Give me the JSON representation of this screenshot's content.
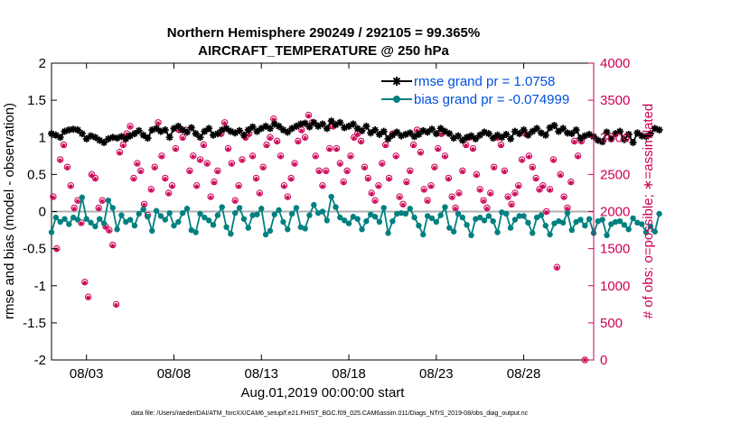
{
  "chart_data": {
    "type": "line",
    "title_line1": "Northern Hemisphere 290249 / 292105 = 99.365%",
    "title_line2": "AIRCRAFT_TEMPERATURE @ 250 hPa",
    "xlabel": "Aug.01,2019 00:00:00 start",
    "ylabel_left": "rmse and bias (model - observation)",
    "ylabel_right": "# of obs: o=possible; ∗=assimilated",
    "xlim": [
      0,
      31
    ],
    "ylim_left": [
      -2,
      2
    ],
    "ylim_right": [
      0,
      4000
    ],
    "x_ticks": [
      {
        "x": 2,
        "label": "08/03"
      },
      {
        "x": 7,
        "label": "08/08"
      },
      {
        "x": 12,
        "label": "08/13"
      },
      {
        "x": 17,
        "label": "08/18"
      },
      {
        "x": 22,
        "label": "08/23"
      },
      {
        "x": 27,
        "label": "08/28"
      }
    ],
    "y_ticks_left": [
      "2",
      "1.5",
      "1",
      "0.5",
      "0",
      "-0.5",
      "-1",
      "-1.5",
      "-2"
    ],
    "y_ticks_left_values": [
      2,
      1.5,
      1,
      0.5,
      0,
      -0.5,
      -1,
      -1.5,
      -2
    ],
    "y_ticks_right": [
      "4000",
      "3500",
      "3000",
      "2500",
      "2000",
      "1500",
      "1000",
      "500",
      "0"
    ],
    "y_ticks_right_values": [
      4000,
      3500,
      3000,
      2500,
      2000,
      1500,
      1000,
      500,
      0
    ],
    "x_step": 0.25,
    "series": [
      {
        "name": "rmse grand pr = 1.0758",
        "color": "#000000",
        "values": [
          1.05,
          1.03,
          1.0,
          1.08,
          1.1,
          1.11,
          1.1,
          1.05,
          0.98,
          1.02,
          1.0,
          0.96,
          0.93,
          0.98,
          1.0,
          0.99,
          1.01,
          0.98,
          1.02,
          1.05,
          1.09,
          1.03,
          0.99,
          1.1,
          1.12,
          1.08,
          1.1,
          1.0,
          1.12,
          1.15,
          1.1,
          1.07,
          1.13,
          1.05,
          1.0,
          1.08,
          1.12,
          1.03,
          1.05,
          1.1,
          1.12,
          1.08,
          1.06,
          1.09,
          1.03,
          1.1,
          1.14,
          1.08,
          1.12,
          1.15,
          1.12,
          1.18,
          1.15,
          1.1,
          1.07,
          1.12,
          1.15,
          1.18,
          1.19,
          1.14,
          1.2,
          1.15,
          1.18,
          1.12,
          1.22,
          1.17,
          1.2,
          1.13,
          1.15,
          1.18,
          1.12,
          1.09,
          1.15,
          1.06,
          1.1,
          1.04,
          1.08,
          0.98,
          1.03,
          1.07,
          1.02,
          1.04,
          1.06,
          1.01,
          1.04,
          1.09,
          1.07,
          1.11,
          1.05,
          1.12,
          1.08,
          1.05,
          0.99,
          1.02,
          0.96,
          1.0,
          1.02,
          0.98,
          1.03,
          1.07,
          1.05,
          0.99,
          1.03,
          1.0,
          1.04,
          0.98,
          1.08,
          1.05,
          1.1,
          1.03,
          1.08,
          1.12,
          1.06,
          1.03,
          1.13,
          1.16,
          1.08,
          1.12,
          1.06,
          1.05,
          1.1,
          0.99,
          1.02,
          1.04,
          1.01,
          0.96,
          0.94,
          1.07,
          0.98,
          1.05,
          1.08,
          0.97,
          1.04,
          0.93,
          1.06,
          1.02,
          1.01,
          1.05,
          1.12,
          1.1
        ],
        "marker": "*"
      },
      {
        "name": "bias grand pr = -0.074999",
        "color": "#008080",
        "values": [
          -0.28,
          -0.08,
          -0.14,
          -0.1,
          -0.17,
          -0.08,
          -0.11,
          0.19,
          -0.1,
          -0.15,
          -0.2,
          -0.1,
          -0.16,
          0.15,
          0.05,
          -0.24,
          -0.05,
          -0.14,
          -0.11,
          -0.19,
          -0.03,
          0.03,
          -0.07,
          -0.26,
          0.01,
          -0.06,
          -0.11,
          -0.02,
          -0.19,
          -0.14,
          -0.02,
          0.04,
          -0.25,
          -0.28,
          -0.03,
          -0.08,
          -0.12,
          -0.18,
          -0.05,
          0.06,
          -0.21,
          -0.3,
          -0.02,
          0.05,
          -0.1,
          -0.22,
          -0.05,
          -0.04,
          0.04,
          -0.31,
          -0.26,
          -0.04,
          0.02,
          -0.14,
          -0.24,
          -0.03,
          0.05,
          -0.21,
          -0.23,
          -0.05,
          0.09,
          -0.02,
          0.0,
          -0.12,
          0.2,
          0.06,
          -0.08,
          -0.12,
          -0.16,
          -0.07,
          -0.1,
          -0.24,
          -0.13,
          -0.04,
          -0.07,
          -0.14,
          0.05,
          -0.29,
          -0.13,
          -0.03,
          -0.02,
          -0.03,
          0.04,
          -0.08,
          -0.19,
          -0.31,
          -0.06,
          -0.09,
          -0.14,
          -0.05,
          0.06,
          -0.22,
          -0.27,
          -0.03,
          -0.08,
          -0.18,
          -0.32,
          -0.1,
          -0.08,
          -0.12,
          -0.06,
          -0.13,
          -0.28,
          -0.01,
          -0.03,
          -0.22,
          -0.11,
          -0.06,
          -0.06,
          -0.15,
          -0.29,
          -0.08,
          -0.05,
          -0.19,
          -0.31,
          -0.16,
          -0.13,
          -0.15,
          -0.02,
          -0.25,
          -0.14,
          -0.11,
          -0.19,
          -0.1,
          -0.29,
          -0.13,
          -0.11,
          -0.32,
          -0.17,
          -0.14,
          -0.13,
          -0.18,
          -0.24,
          -0.09,
          -0.15,
          -0.17,
          -0.28,
          -0.2,
          -0.27,
          -0.03
        ],
        "marker": "o"
      }
    ],
    "obs_possible": [
      2200,
      1500,
      2700,
      2900,
      2600,
      2350,
      2050,
      2150,
      1850,
      1050,
      850,
      2500,
      2450,
      2050,
      2150,
      1800,
      1750,
      1550,
      750,
      2800,
      2900,
      3050,
      3150,
      2450,
      2650,
      2550,
      2100,
      1950,
      2300,
      2600,
      3200,
      2750,
      2450,
      2250,
      2350,
      2850,
      3100,
      3000,
      3100,
      2550,
      2750,
      2350,
      2700,
      2900,
      2650,
      2200,
      2400,
      2550,
      3050,
      3200,
      2850,
      2650,
      2150,
      2350,
      2700,
      3000,
      3050,
      2750,
      2450,
      2250,
      2600,
      2900,
      3000,
      3250,
      2950,
      2750,
      2350,
      2200,
      2450,
      2650,
      2950,
      3100,
      3000,
      3300,
      3200,
      2750,
      2550,
      2350,
      2550,
      2850,
      3150,
      2850,
      2650,
      2400,
      2550,
      2750,
      3000,
      3050,
      2950,
      2600,
      2450,
      2250,
      2150,
      2350,
      2650,
      2900,
      2450,
      3050,
      2750,
      2200,
      2100,
      2400,
      2550,
      2900,
      3100,
      2800,
      2300,
      2150,
      2350,
      2600,
      2850,
      3050,
      2750,
      2450,
      2200,
      2050,
      2250,
      2550,
      2900,
      3000,
      2850,
      2500,
      2300,
      2150,
      2050,
      2250,
      2600,
      3000,
      2900,
      2550,
      2200,
      2100,
      2250,
      2350,
      2700,
      3050,
      2750,
      2600,
      2450,
      2300,
      2350,
      2000,
      2300,
      2700,
      1250,
      2500,
      2200,
      2050,
      2400,
      2950,
      2750,
      2950,
      0
    ],
    "obs_assimilated": [
      2190,
      1490,
      2690,
      2890,
      2590,
      2340,
      2040,
      2140,
      1840,
      1040,
      840,
      2490,
      2440,
      2040,
      2140,
      1790,
      1740,
      1540,
      740,
      2790,
      2890,
      3040,
      3140,
      2440,
      2640,
      2540,
      2090,
      1940,
      2290,
      2590,
      3190,
      2740,
      2440,
      2240,
      2340,
      2840,
      3090,
      2990,
      3090,
      2540,
      2740,
      2340,
      2690,
      2890,
      2640,
      2190,
      2390,
      2540,
      3040,
      3190,
      2840,
      2640,
      2140,
      2340,
      2690,
      2990,
      3040,
      2740,
      2440,
      2240,
      2590,
      2890,
      2990,
      3240,
      2940,
      2740,
      2340,
      2190,
      2440,
      2640,
      2940,
      3090,
      2990,
      3290,
      3190,
      2740,
      2540,
      2340,
      2540,
      2840,
      3140,
      2840,
      2640,
      2390,
      2540,
      2740,
      2990,
      3040,
      2940,
      2590,
      2440,
      2240,
      2140,
      2340,
      2640,
      2890,
      2440,
      3040,
      2740,
      2190,
      2090,
      2390,
      2540,
      2890,
      3090,
      2790,
      2290,
      2140,
      2340,
      2590,
      2840,
      3040,
      2740,
      2440,
      2190,
      2040,
      2240,
      2540,
      2890,
      2990,
      2840,
      2490,
      2290,
      2140,
      2040,
      2240,
      2590,
      2990,
      2890,
      2540,
      2190,
      2090,
      2240,
      2340,
      2690,
      3040,
      2740,
      2590,
      2440,
      2290,
      2340,
      1990,
      2290,
      2690,
      1240,
      2490,
      2190,
      2040,
      2390,
      2940,
      2740,
      2940,
      0
    ],
    "obs_x_start": 0.1,
    "obs_x_step": 0.2,
    "zero_line": 0
  },
  "legend": {
    "rmse_label": "rmse grand pr = 1.0758",
    "bias_label": "bias grand pr = -0.074999"
  },
  "footer": "data file: /Users/raeder/DAI/ATM_forcXX/CAM6_setup/f.e21.FHIST_BGC.f09_025.CAM6assim.011/Diags_NTrS_2019-08/obs_diag_output.nc",
  "colors": {
    "rmse": "#000000",
    "bias": "#008080",
    "obs": "#CC0055",
    "right_axis": "#CC0055",
    "legend_text": "#0050DD",
    "zero_line": "#B0B0B0"
  }
}
